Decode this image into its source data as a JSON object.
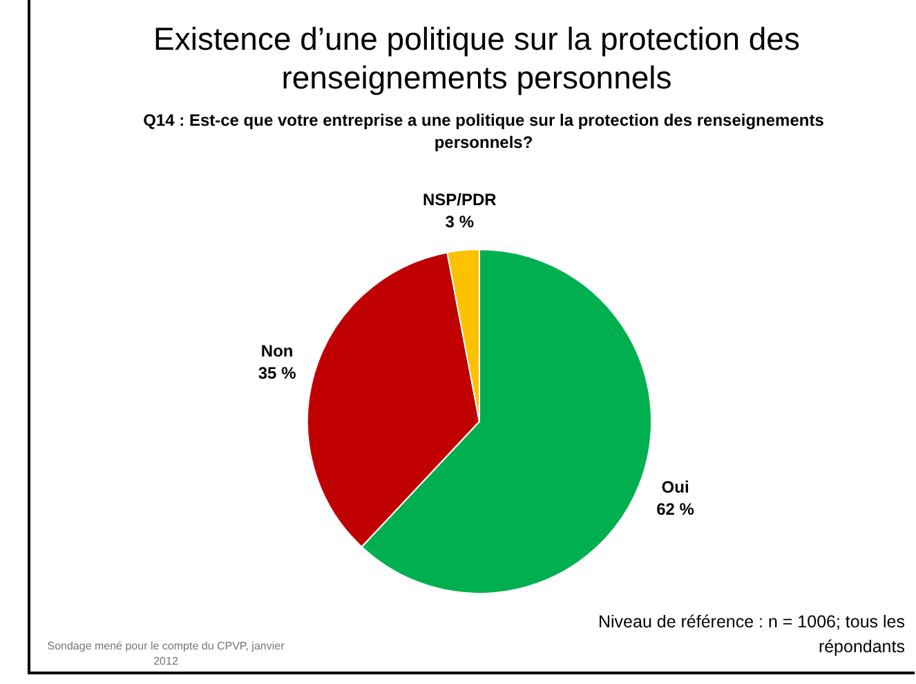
{
  "chart_data": {
    "type": "pie",
    "title": "Existence d’une politique sur la protection des renseignements personnels",
    "subtitle": "Q14 : Est-ce que votre entreprise a une politique sur la protection des renseignements personnels?",
    "categories": [
      "Oui",
      "Non",
      "NSP/PDR"
    ],
    "values": [
      62,
      35,
      3
    ],
    "value_labels": [
      "62 %",
      "35 %",
      "3 %"
    ],
    "colors": [
      "#00b050",
      "#c00000",
      "#ffc000"
    ],
    "legend": false,
    "annotations": [
      "Niveau de référence : n = 1006; tous les répondants",
      "Sondage mené pour le compte du CPVP, janvier 2012"
    ]
  }
}
